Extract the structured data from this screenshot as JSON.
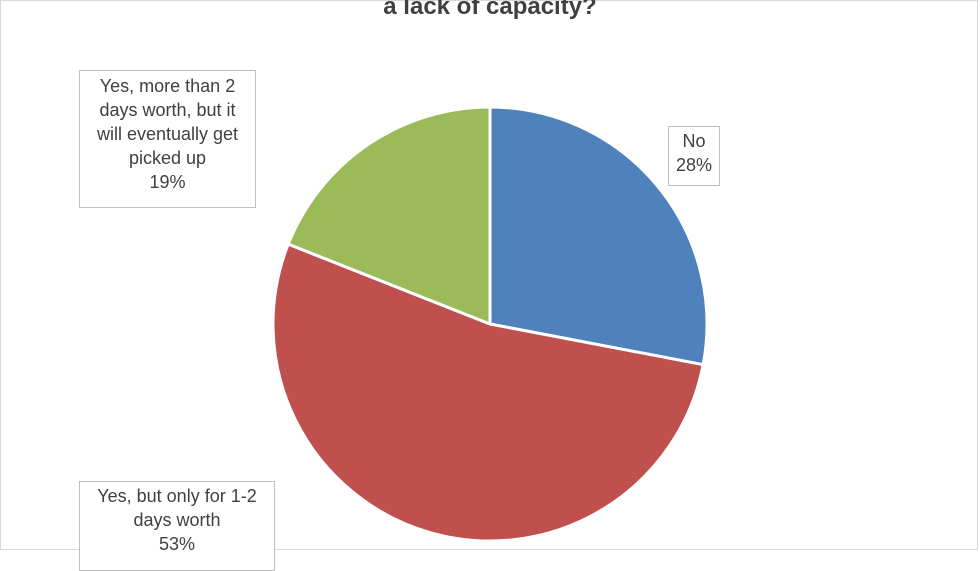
{
  "chart_data": {
    "type": "pie",
    "title_lines": [
      "",
      "a lack of capacity?"
    ],
    "slices": [
      {
        "name": "No",
        "percent_label": "28%",
        "value": 28,
        "color": "#4F81BD"
      },
      {
        "name": "Yes, but only for 1-2 days worth",
        "name_lines": [
          "Yes, but only for 1-2",
          "days worth"
        ],
        "percent_label": "53%",
        "value": 53,
        "color": "#C0504D"
      },
      {
        "name": "Yes, more than 2 days worth, but it will eventually get picked up",
        "name_lines": [
          "Yes, more than 2",
          "days worth, but it",
          "will eventually get",
          "picked up"
        ],
        "percent_label": "19%",
        "value": 19,
        "color": "#9BBB59"
      }
    ],
    "legend": "none",
    "data_labels": "callouts"
  }
}
